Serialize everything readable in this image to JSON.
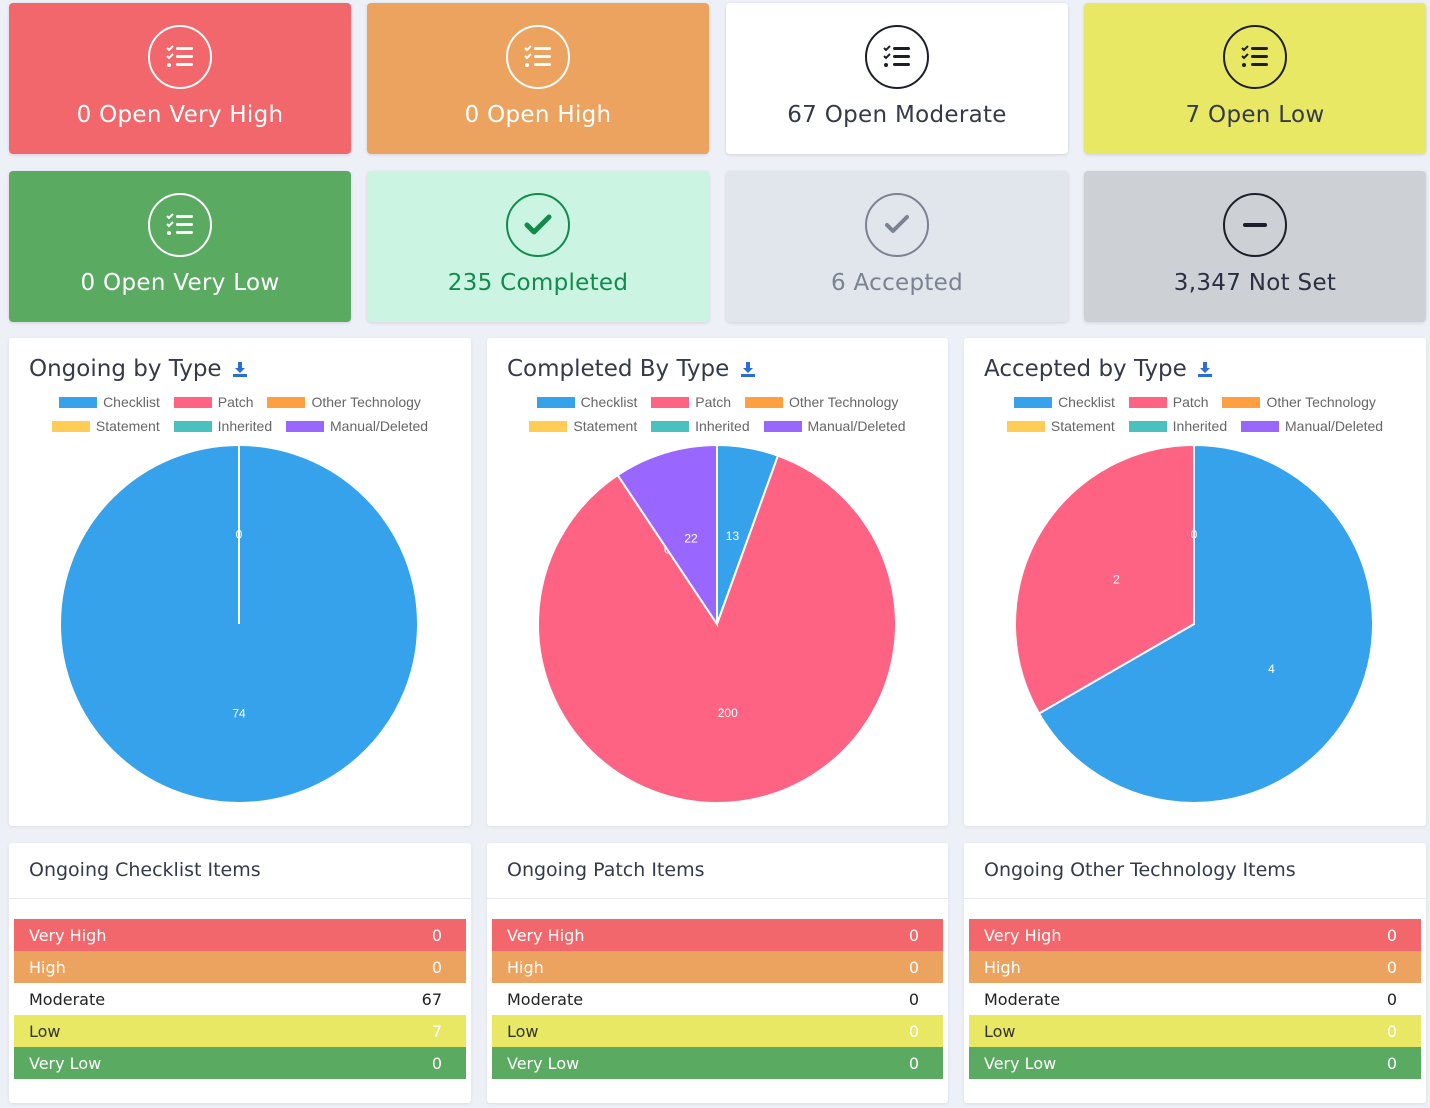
{
  "colors": {
    "very_high": "#f2676b",
    "high": "#eba35f",
    "moderate": "#ffffff",
    "low": "#e8e865",
    "very_low": "#5aaa62",
    "completed": "#cbf4e3",
    "accepted": "#e1e5ec",
    "not_set": "#cdd0d4",
    "checklist": "#36a2eb",
    "patch": "#ff6384",
    "other_technology": "#ff9f40",
    "statement": "#ffcd56",
    "inherited": "#4bc0c0",
    "manual_deleted": "#9966ff"
  },
  "stat_cards": [
    {
      "label": "0 Open Very High",
      "icon": "checklist-icon"
    },
    {
      "label": "0 Open High",
      "icon": "checklist-icon"
    },
    {
      "label": "67 Open Moderate",
      "icon": "checklist-icon"
    },
    {
      "label": "7 Open Low",
      "icon": "checklist-icon"
    },
    {
      "label": "0 Open Very Low",
      "icon": "checklist-icon"
    },
    {
      "label": "235 Completed",
      "icon": "check-icon"
    },
    {
      "label": "6 Accepted",
      "icon": "check-icon"
    },
    {
      "label": "3,347 Not Set",
      "icon": "minus-icon"
    }
  ],
  "legend": [
    "Checklist",
    "Patch",
    "Other Technology",
    "Statement",
    "Inherited",
    "Manual/Deleted"
  ],
  "charts": {
    "ongoing": {
      "title": "Ongoing by Type",
      "download_icon": "download-icon",
      "chart_data": {
        "type": "pie",
        "categories": [
          "Checklist",
          "Patch",
          "Other Technology",
          "Statement",
          "Inherited",
          "Manual/Deleted"
        ],
        "values": [
          74,
          0,
          0,
          0,
          0,
          0
        ],
        "slice_labels": [
          "74",
          "0",
          "",
          "",
          "",
          ""
        ]
      }
    },
    "completed": {
      "title": "Completed By Type",
      "download_icon": "download-icon",
      "chart_data": {
        "type": "pie",
        "categories": [
          "Checklist",
          "Patch",
          "Other Technology",
          "Statement",
          "Inherited",
          "Manual/Deleted"
        ],
        "values": [
          13,
          200,
          0,
          0,
          0,
          22
        ],
        "slice_labels": [
          "13",
          "200",
          "",
          "",
          "0",
          "22"
        ]
      }
    },
    "accepted": {
      "title": "Accepted by Type",
      "download_icon": "download-icon",
      "chart_data": {
        "type": "pie",
        "categories": [
          "Checklist",
          "Patch",
          "Other Technology",
          "Statement",
          "Inherited",
          "Manual/Deleted"
        ],
        "values": [
          4,
          2,
          0,
          0,
          0,
          0
        ],
        "slice_labels": [
          "4",
          "2",
          "",
          "",
          "",
          "0"
        ]
      }
    }
  },
  "lists": {
    "checklist": {
      "title": "Ongoing Checklist Items",
      "rows": [
        {
          "label": "Very High",
          "value": "0"
        },
        {
          "label": "High",
          "value": "0"
        },
        {
          "label": "Moderate",
          "value": "67"
        },
        {
          "label": "Low",
          "value": "7"
        },
        {
          "label": "Very Low",
          "value": "0"
        }
      ]
    },
    "patch": {
      "title": "Ongoing Patch Items",
      "rows": [
        {
          "label": "Very High",
          "value": "0"
        },
        {
          "label": "High",
          "value": "0"
        },
        {
          "label": "Moderate",
          "value": "0"
        },
        {
          "label": "Low",
          "value": "0"
        },
        {
          "label": "Very Low",
          "value": "0"
        }
      ]
    },
    "other": {
      "title": "Ongoing Other Technology Items",
      "rows": [
        {
          "label": "Very High",
          "value": "0"
        },
        {
          "label": "High",
          "value": "0"
        },
        {
          "label": "Moderate",
          "value": "0"
        },
        {
          "label": "Low",
          "value": "0"
        },
        {
          "label": "Very Low",
          "value": "0"
        }
      ]
    }
  }
}
